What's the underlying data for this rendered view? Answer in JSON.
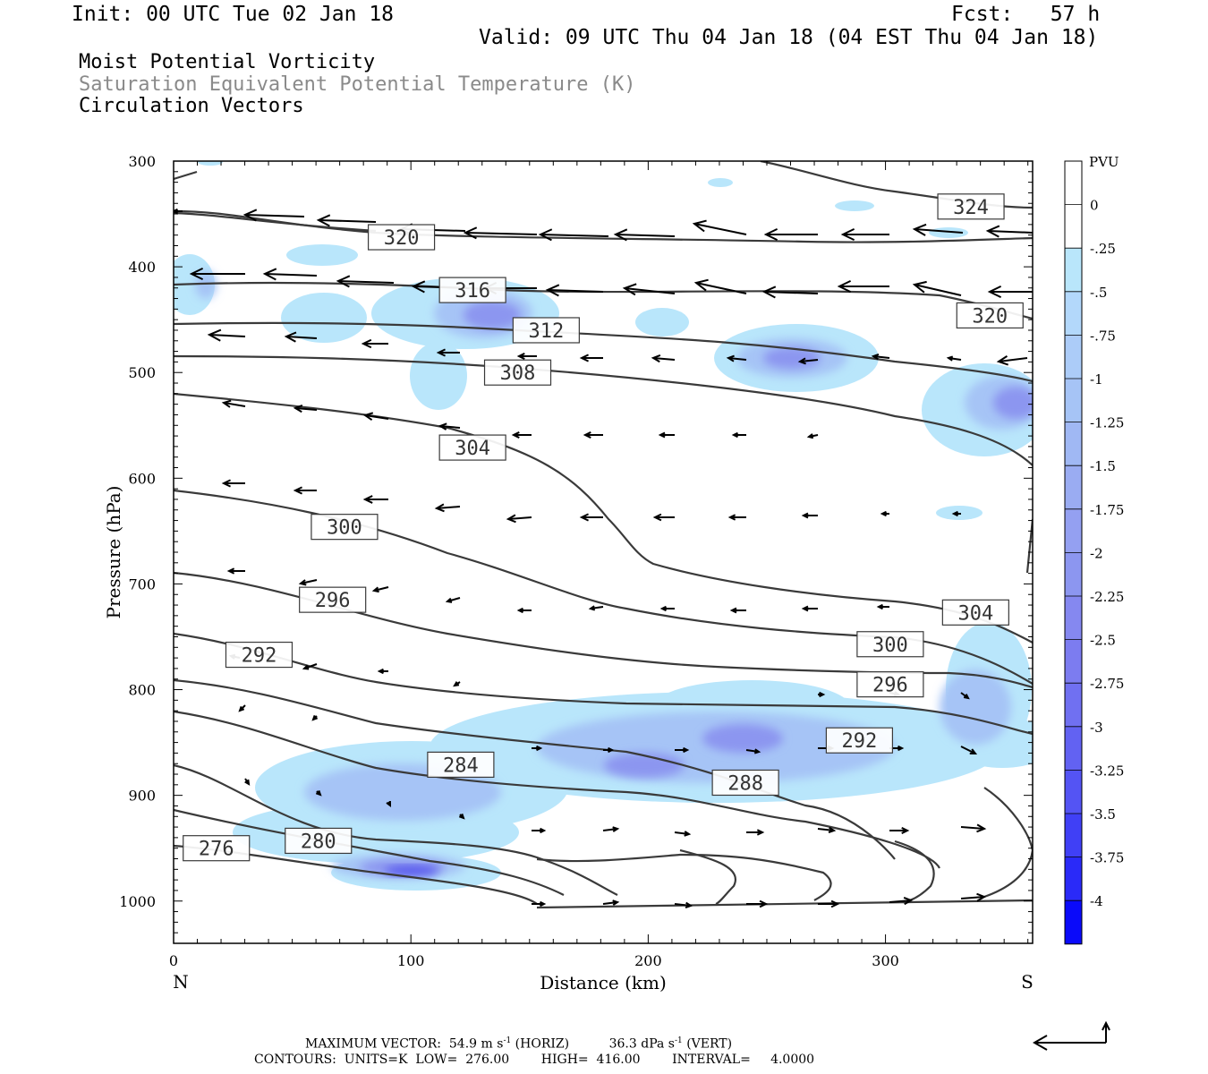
{
  "header": {
    "init": "Init: 00 UTC Tue 02 Jan 18",
    "fcst": "Fcst:   57 h",
    "valid": "Valid: 09 UTC Thu 04 Jan 18 (04 EST Thu 04 Jan 18)"
  },
  "fields": [
    "Moist Potential Vorticity",
    "Saturation Equivalent Potential Temperature (K)",
    "Circulation Vectors"
  ],
  "footer": {
    "max_label": "MAXIMUM VECTOR:",
    "horiz_value": "54.9 m s",
    "horiz_exp": "-1",
    "horiz_unit": "(HORIZ)",
    "vert_value": "36.3 dPa s",
    "vert_exp": "-1",
    "vert_unit": "(VERT)",
    "contours": "CONTOURS:  UNITS=K  LOW=  276.00        HIGH=  416.00        INTERVAL=     4.0000"
  },
  "chart_data": {
    "type": "contour",
    "xlabel": "Distance (km)",
    "ylabel": "Pressure (hPa)",
    "xlim": [
      0,
      362
    ],
    "ylim": [
      1040,
      300
    ],
    "x_ticks": [
      0,
      100,
      200,
      300
    ],
    "y_ticks": [
      300,
      400,
      500,
      600,
      700,
      800,
      900,
      1000
    ],
    "x_end_labels": {
      "left": "N",
      "right": "S"
    },
    "colorbar": {
      "unit": "PVU",
      "levels": [
        0,
        -0.25,
        -0.5,
        -0.75,
        -1,
        -1.25,
        -1.5,
        -1.75,
        -2,
        -2.25,
        -2.5,
        -2.75,
        -3,
        -3.25,
        -3.5,
        -3.75,
        -4
      ],
      "labels": [
        "0",
        "-.25",
        "-.5",
        "-.75",
        "-1",
        "-1.25",
        "-1.5",
        "-1.75",
        "-2",
        "-2.25",
        "-2.5",
        "-2.75",
        "-3",
        "-3.25",
        "-3.5",
        "-3.75",
        "-4"
      ]
    },
    "contour_labels": [
      {
        "text": "324",
        "x": 336,
        "p": 343
      },
      {
        "text": "320",
        "x": 96,
        "p": 372
      },
      {
        "text": "320",
        "x": 344,
        "p": 446
      },
      {
        "text": "316",
        "x": 126,
        "p": 422
      },
      {
        "text": "312",
        "x": 157,
        "p": 460
      },
      {
        "text": "308",
        "x": 145,
        "p": 500
      },
      {
        "text": "304",
        "x": 126,
        "p": 571
      },
      {
        "text": "304",
        "x": 338,
        "p": 727
      },
      {
        "text": "300",
        "x": 72,
        "p": 646
      },
      {
        "text": "300",
        "x": 302,
        "p": 757
      },
      {
        "text": "296",
        "x": 67,
        "p": 715
      },
      {
        "text": "296",
        "x": 302,
        "p": 795
      },
      {
        "text": "292",
        "x": 36,
        "p": 767
      },
      {
        "text": "292",
        "x": 289,
        "p": 848
      },
      {
        "text": "288",
        "x": 241,
        "p": 888
      },
      {
        "text": "284",
        "x": 121,
        "p": 871
      },
      {
        "text": "280",
        "x": 61,
        "p": 943
      },
      {
        "text": "276",
        "x": 18,
        "p": 950
      }
    ]
  }
}
